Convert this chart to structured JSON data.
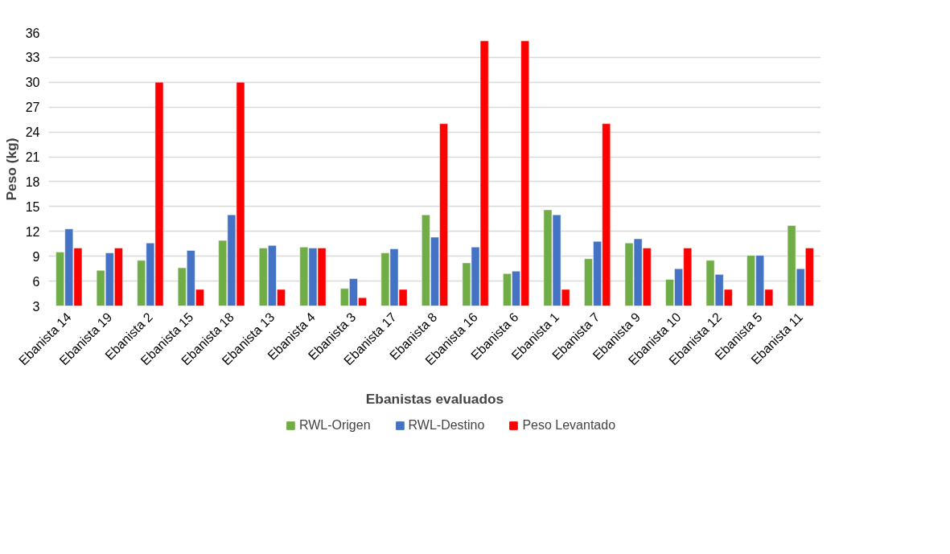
{
  "chart_data": {
    "type": "bar",
    "xlabel": "Ebanistas evaluados",
    "ylabel": "Peso (kg)",
    "categories": [
      "Ebanista 14",
      "Ebanista 19",
      "Ebanista 2",
      "Ebanista 15",
      "Ebanista 18",
      "Ebanista 13",
      "Ebanista 4",
      "Ebanista 3",
      "Ebanista 17",
      "Ebanista 8",
      "Ebanista 16",
      "Ebanista 6",
      "Ebanista 1",
      "Ebanista 7",
      "Ebanista 9",
      "Ebanista 10",
      "Ebanista 12",
      "Ebanista 5",
      "Ebanista 11"
    ],
    "series": [
      {
        "name": "RWL-Origen",
        "color": "#70ad47",
        "values": [
          9.5,
          7.3,
          8.5,
          7.6,
          10.9,
          10,
          10.1,
          5.1,
          9.4,
          14,
          8.2,
          6.9,
          14.6,
          8.7,
          10.6,
          6.2,
          8.5,
          9.1,
          12.7
        ]
      },
      {
        "name": "RWL-Destino",
        "color": "#4472c4",
        "values": [
          12.3,
          9.4,
          10.6,
          9.7,
          14,
          10.3,
          10,
          6.3,
          9.9,
          11.3,
          10.1,
          7.2,
          14,
          10.8,
          11.1,
          7.5,
          6.8,
          9.1,
          7.5
        ]
      },
      {
        "name": "Peso Levantado",
        "color": "#ff0000",
        "values": [
          10,
          10,
          30,
          5,
          30,
          5,
          10,
          4,
          5,
          25,
          35,
          35,
          5,
          25,
          10,
          10,
          5,
          5,
          10
        ]
      }
    ],
    "ylim": [
      3,
      36
    ],
    "yticks": [
      3,
      6,
      9,
      12,
      15,
      18,
      21,
      24,
      27,
      30,
      33,
      36
    ],
    "grid": "y",
    "legend": "bottom"
  }
}
